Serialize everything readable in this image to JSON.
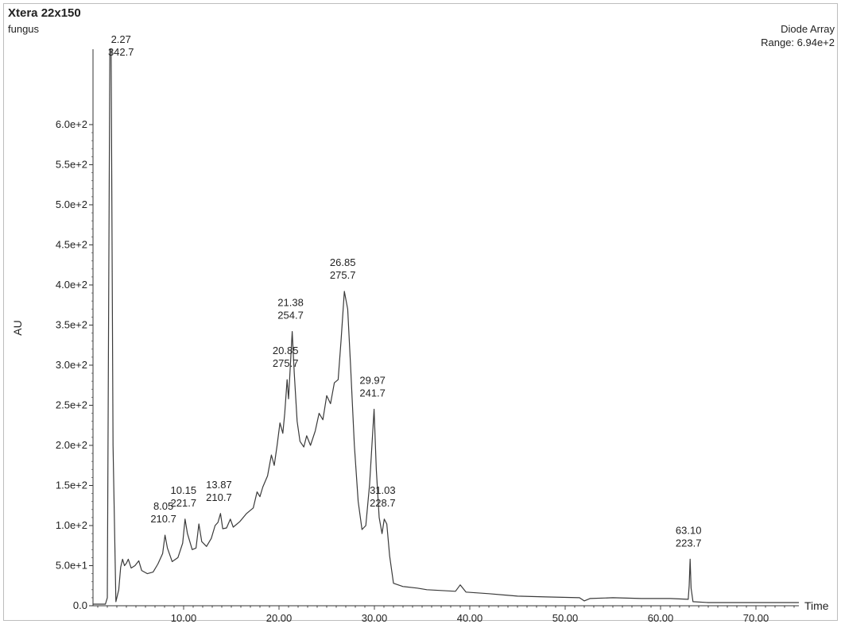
{
  "header": {
    "title": "Xtera 22x150",
    "subtitle": "fungus",
    "detector": "Diode Array",
    "range": "Range: 6.94e+2"
  },
  "chart_data": {
    "type": "line",
    "xlabel": "Time",
    "ylabel": "AU",
    "xlim": [
      0.5,
      74.5
    ],
    "ylim": [
      0,
      694
    ],
    "x_ticks": [
      10,
      20,
      30,
      40,
      50,
      60,
      70
    ],
    "x_tick_labels": [
      "10.00",
      "20.00",
      "30.00",
      "40.00",
      "50.00",
      "60.00",
      "70.00"
    ],
    "y_ticks": [
      0,
      50,
      100,
      150,
      200,
      250,
      300,
      350,
      400,
      450,
      500,
      550,
      600
    ],
    "y_tick_labels": [
      "0.0",
      "5.0e+1",
      "1.0e+2",
      "1.5e+2",
      "2.0e+2",
      "2.5e+2",
      "3.0e+2",
      "3.5e+2",
      "4.0e+2",
      "4.5e+2",
      "5.0e+2",
      "5.5e+2",
      "6.0e+2"
    ],
    "series": [
      {
        "color": "#3a3a3a",
        "points": [
          [
            0.5,
            2
          ],
          [
            1.8,
            2
          ],
          [
            2.0,
            10
          ],
          [
            2.15,
            400
          ],
          [
            2.27,
            694
          ],
          [
            2.4,
            694
          ],
          [
            2.6,
            200
          ],
          [
            2.9,
            5
          ],
          [
            3.2,
            20
          ],
          [
            3.4,
            48
          ],
          [
            3.6,
            58
          ],
          [
            3.8,
            50
          ],
          [
            4.0,
            53
          ],
          [
            4.2,
            58
          ],
          [
            4.5,
            47
          ],
          [
            4.9,
            50
          ],
          [
            5.3,
            56
          ],
          [
            5.6,
            44
          ],
          [
            6.2,
            40
          ],
          [
            6.8,
            42
          ],
          [
            7.3,
            52
          ],
          [
            7.8,
            65
          ],
          [
            8.05,
            88
          ],
          [
            8.3,
            72
          ],
          [
            8.8,
            55
          ],
          [
            9.4,
            60
          ],
          [
            9.9,
            78
          ],
          [
            10.15,
            108
          ],
          [
            10.4,
            90
          ],
          [
            10.9,
            70
          ],
          [
            11.3,
            72
          ],
          [
            11.6,
            102
          ],
          [
            11.9,
            80
          ],
          [
            12.4,
            74
          ],
          [
            12.9,
            84
          ],
          [
            13.3,
            100
          ],
          [
            13.6,
            104
          ],
          [
            13.87,
            115
          ],
          [
            14.1,
            96
          ],
          [
            14.5,
            97
          ],
          [
            14.9,
            108
          ],
          [
            15.2,
            98
          ],
          [
            15.9,
            105
          ],
          [
            16.6,
            115
          ],
          [
            17.3,
            122
          ],
          [
            17.7,
            142
          ],
          [
            18.0,
            136
          ],
          [
            18.3,
            148
          ],
          [
            18.8,
            162
          ],
          [
            19.2,
            188
          ],
          [
            19.5,
            175
          ],
          [
            19.8,
            200
          ],
          [
            20.1,
            228
          ],
          [
            20.4,
            215
          ],
          [
            20.6,
            240
          ],
          [
            20.85,
            282
          ],
          [
            21.0,
            258
          ],
          [
            21.38,
            342
          ],
          [
            21.6,
            290
          ],
          [
            21.9,
            230
          ],
          [
            22.2,
            205
          ],
          [
            22.6,
            198
          ],
          [
            22.9,
            212
          ],
          [
            23.3,
            200
          ],
          [
            23.8,
            218
          ],
          [
            24.2,
            240
          ],
          [
            24.6,
            232
          ],
          [
            25.0,
            262
          ],
          [
            25.4,
            252
          ],
          [
            25.8,
            278
          ],
          [
            26.2,
            282
          ],
          [
            26.5,
            330
          ],
          [
            26.85,
            392
          ],
          [
            27.2,
            370
          ],
          [
            27.5,
            300
          ],
          [
            27.9,
            200
          ],
          [
            28.3,
            130
          ],
          [
            28.7,
            95
          ],
          [
            29.1,
            100
          ],
          [
            29.5,
            152
          ],
          [
            29.97,
            245
          ],
          [
            30.2,
            170
          ],
          [
            30.5,
            110
          ],
          [
            30.8,
            90
          ],
          [
            31.03,
            108
          ],
          [
            31.3,
            102
          ],
          [
            31.6,
            62
          ],
          [
            32.0,
            28
          ],
          [
            33.0,
            24
          ],
          [
            34.5,
            22
          ],
          [
            35.5,
            20
          ],
          [
            37.0,
            19
          ],
          [
            38.5,
            18
          ],
          [
            39.0,
            26
          ],
          [
            39.6,
            17
          ],
          [
            42.0,
            15
          ],
          [
            45.0,
            12
          ],
          [
            48.0,
            11
          ],
          [
            51.5,
            10
          ],
          [
            52.0,
            6
          ],
          [
            52.6,
            9
          ],
          [
            55.0,
            10
          ],
          [
            58.0,
            9
          ],
          [
            61.0,
            9
          ],
          [
            62.9,
            8
          ],
          [
            63.0,
            25
          ],
          [
            63.1,
            58
          ],
          [
            63.2,
            22
          ],
          [
            63.4,
            5
          ],
          [
            65.0,
            4
          ],
          [
            68.0,
            4
          ],
          [
            72.0,
            4
          ],
          [
            74.5,
            4
          ]
        ]
      }
    ],
    "peaks": [
      {
        "x": 2.27,
        "y": 694,
        "rt": "2.27",
        "mass": "342.7"
      },
      {
        "x": 8.05,
        "y": 88,
        "rt": "8.05",
        "mass": "210.7"
      },
      {
        "x": 10.15,
        "y": 108,
        "rt": "10.15",
        "mass": "221.7"
      },
      {
        "x": 13.87,
        "y": 115,
        "rt": "13.87",
        "mass": "210.7"
      },
      {
        "x": 20.85,
        "y": 282,
        "rt": "20.85",
        "mass": "275.7"
      },
      {
        "x": 21.38,
        "y": 342,
        "rt": "21.38",
        "mass": "254.7"
      },
      {
        "x": 26.85,
        "y": 392,
        "rt": "26.85",
        "mass": "275.7"
      },
      {
        "x": 29.97,
        "y": 245,
        "rt": "29.97",
        "mass": "241.7"
      },
      {
        "x": 31.03,
        "y": 108,
        "rt": "31.03",
        "mass": "228.7"
      },
      {
        "x": 63.1,
        "y": 58,
        "rt": "63.10",
        "mass": "223.7"
      }
    ]
  }
}
